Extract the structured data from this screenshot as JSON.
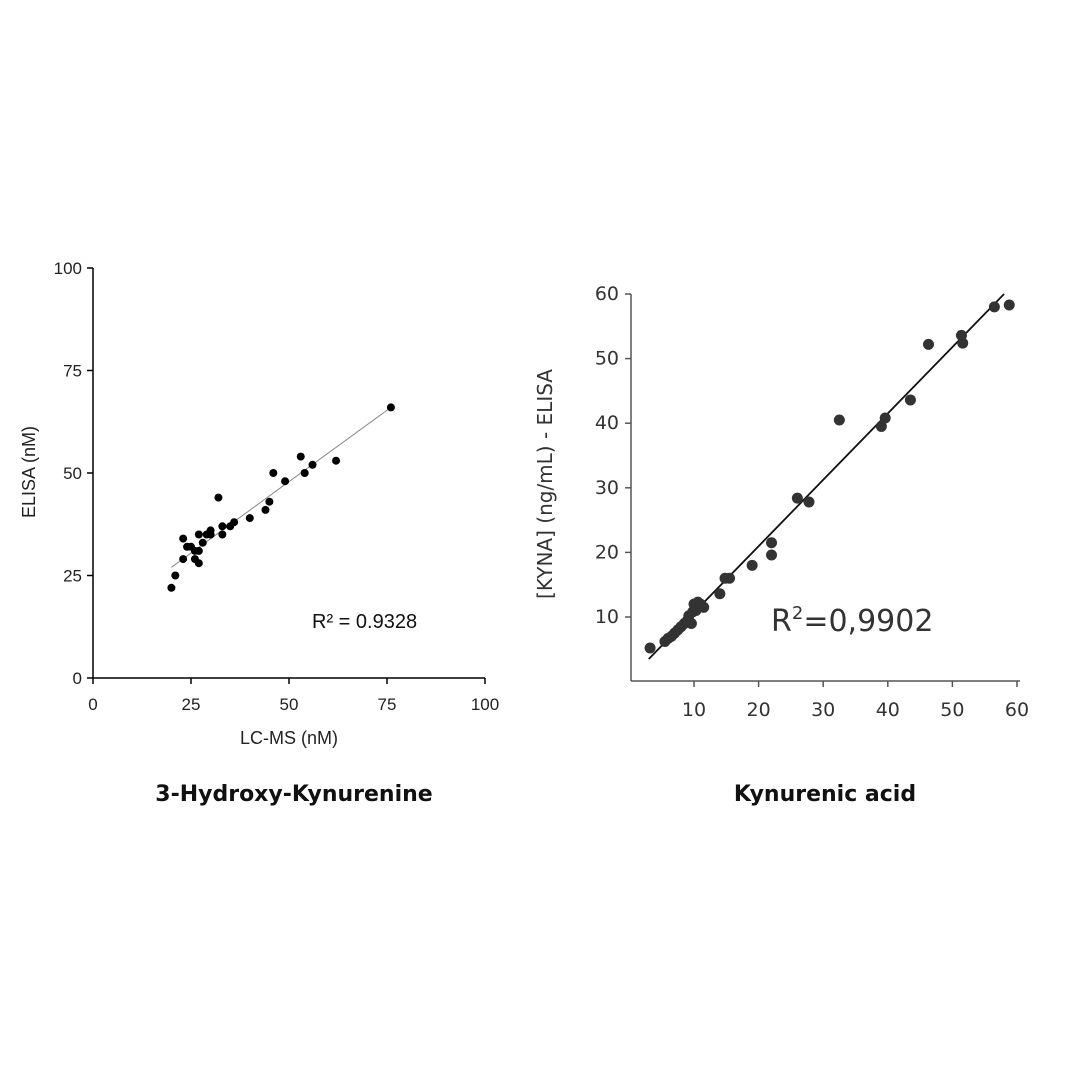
{
  "chart_data": [
    {
      "type": "scatter",
      "xlabel": "LC-MS (nM)",
      "ylabel": "ELISA (nM)",
      "caption": "3-Hydroxy-Kynurenine",
      "annotation": "R² = 0.9328",
      "xlim": [
        0,
        100
      ],
      "ylim": [
        0,
        100
      ],
      "xticks": [
        "0",
        "25",
        "50",
        "75",
        "100"
      ],
      "yticks": [
        "0",
        "25",
        "50",
        "75",
        "100"
      ],
      "grid": false,
      "point_color": "#000000",
      "trendline": {
        "x1": 20,
        "y1": 27,
        "x2": 76,
        "y2": 66,
        "color": "#888888"
      },
      "points": [
        [
          20,
          22
        ],
        [
          21,
          25
        ],
        [
          23,
          29
        ],
        [
          23,
          34
        ],
        [
          24,
          32
        ],
        [
          25,
          32
        ],
        [
          26,
          31
        ],
        [
          26,
          29
        ],
        [
          27,
          28
        ],
        [
          27,
          31
        ],
        [
          27,
          35
        ],
        [
          28,
          33
        ],
        [
          29,
          35
        ],
        [
          30,
          35
        ],
        [
          30,
          36
        ],
        [
          32,
          44
        ],
        [
          33,
          35
        ],
        [
          33,
          37
        ],
        [
          35,
          37
        ],
        [
          36,
          38
        ],
        [
          40,
          39
        ],
        [
          44,
          41
        ],
        [
          45,
          43
        ],
        [
          46,
          50
        ],
        [
          49,
          48
        ],
        [
          53,
          54
        ],
        [
          54,
          50
        ],
        [
          56,
          52
        ],
        [
          62,
          53
        ],
        [
          76,
          66
        ]
      ]
    },
    {
      "type": "scatter",
      "xlabel": "",
      "ylabel": "[KYNA] (ng/mL) - ELISA",
      "caption": "Kynurenic acid",
      "annotation_base": "R",
      "annotation_sup": "2",
      "annotation_value": "=0,9902",
      "xlim": [
        0,
        60
      ],
      "ylim": [
        0,
        60
      ],
      "xticks": [
        "10",
        "20",
        "30",
        "40",
        "50",
        "60"
      ],
      "yticks": [
        "10",
        "20",
        "30",
        "40",
        "50",
        "60"
      ],
      "grid": false,
      "point_color": "#333333",
      "trendline": {
        "x1": 3,
        "y1": 3.5,
        "x2": 58,
        "y2": 60,
        "color": "#111111"
      },
      "points": [
        [
          3.2,
          5.2
        ],
        [
          5.5,
          6.2
        ],
        [
          6,
          6.7
        ],
        [
          6.5,
          7
        ],
        [
          7,
          7.5
        ],
        [
          7.5,
          8
        ],
        [
          8,
          8.5
        ],
        [
          8.5,
          9
        ],
        [
          9,
          9.5
        ],
        [
          9.2,
          10.2
        ],
        [
          9.6,
          9
        ],
        [
          9.8,
          10.8
        ],
        [
          10,
          12
        ],
        [
          10.3,
          11
        ],
        [
          10.6,
          12.3
        ],
        [
          11,
          12
        ],
        [
          11.5,
          11.5
        ],
        [
          14,
          13.6
        ],
        [
          14.8,
          16
        ],
        [
          15.5,
          16
        ],
        [
          19,
          18
        ],
        [
          22,
          19.6
        ],
        [
          22,
          21.5
        ],
        [
          26,
          28.4
        ],
        [
          27.8,
          27.8
        ],
        [
          32.5,
          40.5
        ],
        [
          39,
          39.5
        ],
        [
          39.6,
          40.8
        ],
        [
          43.5,
          43.6
        ],
        [
          46.3,
          52.2
        ],
        [
          51.4,
          53.6
        ],
        [
          51.6,
          52.4
        ],
        [
          56.5,
          58
        ],
        [
          58.8,
          58.3
        ]
      ]
    }
  ]
}
